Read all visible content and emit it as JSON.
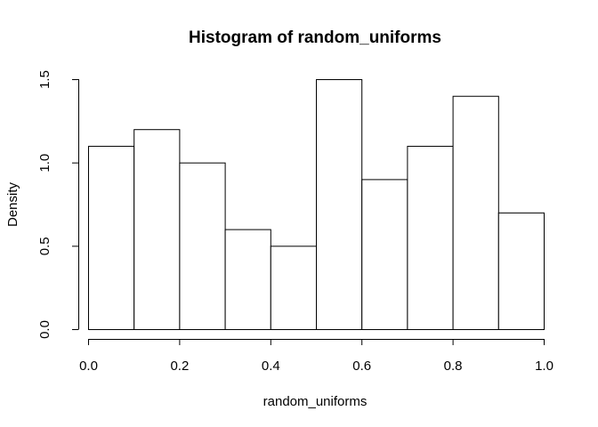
{
  "chart_data": {
    "type": "bar",
    "title": "Histogram of random_uniforms",
    "xlabel": "random_uniforms",
    "ylabel": "Density",
    "bins": [
      {
        "from": 0.0,
        "to": 0.1,
        "density": 1.1
      },
      {
        "from": 0.1,
        "to": 0.2,
        "density": 1.2
      },
      {
        "from": 0.2,
        "to": 0.3,
        "density": 1.0
      },
      {
        "from": 0.3,
        "to": 0.4,
        "density": 0.6
      },
      {
        "from": 0.4,
        "to": 0.5,
        "density": 0.5
      },
      {
        "from": 0.5,
        "to": 0.6,
        "density": 1.5
      },
      {
        "from": 0.6,
        "to": 0.7,
        "density": 0.9
      },
      {
        "from": 0.7,
        "to": 0.8,
        "density": 1.1
      },
      {
        "from": 0.8,
        "to": 0.9,
        "density": 1.4
      },
      {
        "from": 0.9,
        "to": 1.0,
        "density": 0.7
      }
    ],
    "xlim": [
      0,
      1
    ],
    "ylim": [
      0,
      1.5
    ],
    "x_ticks": [
      "0.0",
      "0.2",
      "0.4",
      "0.6",
      "0.8",
      "1.0"
    ],
    "y_ticks": [
      "0.0",
      "0.5",
      "1.0",
      "1.5"
    ],
    "grid": false,
    "legend": "none"
  }
}
